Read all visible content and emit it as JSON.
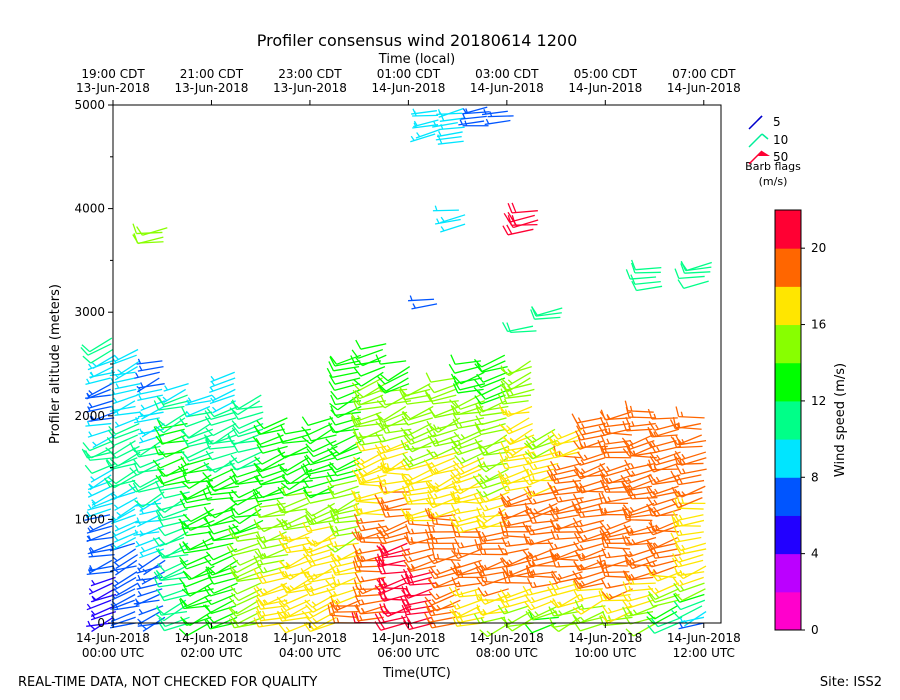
{
  "chart_data": {
    "type": "wind-barbs",
    "title": "Profiler consensus wind 20180614 1200",
    "top_axis_label": "Time (local)",
    "top_ticks": [
      {
        "line1": "19:00 CDT",
        "line2": "13-Jun-2018",
        "hour_utc": 0
      },
      {
        "line1": "21:00 CDT",
        "line2": "13-Jun-2018",
        "hour_utc": 2
      },
      {
        "line1": "23:00 CDT",
        "line2": "13-Jun-2018",
        "hour_utc": 4
      },
      {
        "line1": "01:00 CDT",
        "line2": "14-Jun-2018",
        "hour_utc": 6
      },
      {
        "line1": "03:00 CDT",
        "line2": "14-Jun-2018",
        "hour_utc": 8
      },
      {
        "line1": "05:00 CDT",
        "line2": "14-Jun-2018",
        "hour_utc": 10
      },
      {
        "line1": "07:00 CDT",
        "line2": "14-Jun-2018",
        "hour_utc": 12
      }
    ],
    "bottom_ticks": [
      {
        "line1": "14-Jun-2018",
        "line2": "00:00 UTC",
        "hour_utc": 0
      },
      {
        "line1": "14-Jun-2018",
        "line2": "02:00 UTC",
        "hour_utc": 2
      },
      {
        "line1": "14-Jun-2018",
        "line2": "04:00 UTC",
        "hour_utc": 4
      },
      {
        "line1": "14-Jun-2018",
        "line2": "06:00 UTC",
        "hour_utc": 6
      },
      {
        "line1": "14-Jun-2018",
        "line2": "08:00 UTC",
        "hour_utc": 8
      },
      {
        "line1": "14-Jun-2018",
        "line2": "10:00 UTC",
        "hour_utc": 10
      },
      {
        "line1": "14-Jun-2018",
        "line2": "12:00 UTC",
        "hour_utc": 12
      }
    ],
    "xlabel": "Time(UTC)",
    "ylabel": "Profiler altitude (meters)",
    "xlim_hours": [
      0,
      12.35
    ],
    "ylim": [
      0,
      5000
    ],
    "yticks": [
      0,
      1000,
      2000,
      3000,
      4000,
      5000
    ],
    "colorbar": {
      "label": "Wind speed (m/s)",
      "ticks": [
        0,
        4,
        8,
        12,
        16,
        20
      ],
      "range": [
        0,
        22
      ],
      "colors": [
        "#ff00cc",
        "#bb00ff",
        "#2200ff",
        "#0055ff",
        "#00e5ff",
        "#00ff88",
        "#00ff00",
        "#88ff00",
        "#ffe600",
        "#ff6600",
        "#ff0033"
      ]
    },
    "barb_legend": {
      "title_line1": "Barb flags",
      "title_line2": "(m/s)",
      "items": [
        {
          "label": "5",
          "color": "#0000cc"
        },
        {
          "label": "10",
          "color": "#00ee99"
        },
        {
          "label": "50",
          "color": "#ff0033"
        }
      ]
    },
    "profile_times_hours": [
      0.0,
      0.5,
      1.0,
      1.5,
      2.0,
      2.5,
      3.0,
      3.5,
      4.0,
      4.5,
      5.0,
      5.5,
      6.0,
      6.5,
      7.0,
      7.5,
      8.0,
      8.5,
      9.0,
      9.5,
      10.0,
      10.5,
      11.0,
      11.5,
      12.0
    ],
    "profile_tops_m": [
      2750,
      2650,
      2550,
      2350,
      2250,
      2450,
      2200,
      2000,
      1900,
      2000,
      2600,
      2700,
      2550,
      2350,
      2400,
      2550,
      2600,
      2550,
      1900,
      1900,
      2000,
      2050,
      2050,
      2000,
      2000
    ],
    "level_step_m": 55,
    "speed_profiles": [
      {
        "t": 0.0,
        "points": [
          [
            0,
            5
          ],
          [
            900,
            7
          ],
          [
            1700,
            11
          ],
          [
            2100,
            6
          ],
          [
            2750,
            11
          ]
        ]
      },
      {
        "t": 0.5,
        "points": [
          [
            0,
            6
          ],
          [
            800,
            8
          ],
          [
            1600,
            11
          ],
          [
            2650,
            8
          ]
        ]
      },
      {
        "t": 1.0,
        "points": [
          [
            0,
            6
          ],
          [
            700,
            8
          ],
          [
            1500,
            11
          ],
          [
            2550,
            7
          ]
        ]
      },
      {
        "t": 1.5,
        "points": [
          [
            0,
            10
          ],
          [
            900,
            11
          ],
          [
            1800,
            13
          ],
          [
            2350,
            9
          ]
        ]
      },
      {
        "t": 2.0,
        "points": [
          [
            0,
            13
          ],
          [
            800,
            13
          ],
          [
            1400,
            13
          ],
          [
            2250,
            9
          ]
        ]
      },
      {
        "t": 2.5,
        "points": [
          [
            0,
            13
          ],
          [
            700,
            13
          ],
          [
            1200,
            13
          ],
          [
            2450,
            9
          ]
        ]
      },
      {
        "t": 3.0,
        "points": [
          [
            0,
            14
          ],
          [
            600,
            15
          ],
          [
            1200,
            13
          ],
          [
            2200,
            10
          ]
        ]
      },
      {
        "t": 3.5,
        "points": [
          [
            0,
            16
          ],
          [
            500,
            16
          ],
          [
            1200,
            14
          ],
          [
            2000,
            12
          ]
        ]
      },
      {
        "t": 4.0,
        "points": [
          [
            0,
            17
          ],
          [
            700,
            17
          ],
          [
            1500,
            13
          ],
          [
            1900,
            13
          ]
        ]
      },
      {
        "t": 4.5,
        "points": [
          [
            0,
            17
          ],
          [
            800,
            17
          ],
          [
            1400,
            13
          ],
          [
            2000,
            12
          ]
        ]
      },
      {
        "t": 5.0,
        "points": [
          [
            0,
            19
          ],
          [
            500,
            17
          ],
          [
            1400,
            14
          ],
          [
            2600,
            13
          ]
        ]
      },
      {
        "t": 5.5,
        "points": [
          [
            0,
            20
          ],
          [
            600,
            19
          ],
          [
            1400,
            17
          ],
          [
            2700,
            13
          ]
        ]
      },
      {
        "t": 6.0,
        "points": [
          [
            0,
            21
          ],
          [
            800,
            20
          ],
          [
            1500,
            17
          ],
          [
            2550,
            13
          ]
        ]
      },
      {
        "t": 6.5,
        "points": [
          [
            0,
            21
          ],
          [
            500,
            20
          ],
          [
            1200,
            17
          ],
          [
            2350,
            14
          ]
        ]
      },
      {
        "t": 7.0,
        "points": [
          [
            0,
            18
          ],
          [
            600,
            20
          ],
          [
            1300,
            17
          ],
          [
            2400,
            14
          ]
        ]
      },
      {
        "t": 7.5,
        "points": [
          [
            0,
            16
          ],
          [
            500,
            19
          ],
          [
            1300,
            17
          ],
          [
            2550,
            13
          ]
        ]
      },
      {
        "t": 8.0,
        "points": [
          [
            0,
            15
          ],
          [
            500,
            20
          ],
          [
            1300,
            16
          ],
          [
            2600,
            13
          ]
        ]
      },
      {
        "t": 8.5,
        "points": [
          [
            0,
            14
          ],
          [
            500,
            20
          ],
          [
            1300,
            18
          ],
          [
            2550,
            15
          ]
        ]
      },
      {
        "t": 9.0,
        "points": [
          [
            0,
            13
          ],
          [
            500,
            20
          ],
          [
            1300,
            18
          ],
          [
            1900,
            15
          ]
        ]
      },
      {
        "t": 9.5,
        "points": [
          [
            0,
            14
          ],
          [
            500,
            19
          ],
          [
            1300,
            19
          ],
          [
            1900,
            17
          ]
        ]
      },
      {
        "t": 10.0,
        "points": [
          [
            0,
            14
          ],
          [
            500,
            20
          ],
          [
            1200,
            19
          ],
          [
            2000,
            18
          ]
        ]
      },
      {
        "t": 10.5,
        "points": [
          [
            0,
            15
          ],
          [
            500,
            20
          ],
          [
            1200,
            19
          ],
          [
            2050,
            19
          ]
        ]
      },
      {
        "t": 11.0,
        "points": [
          [
            0,
            14
          ],
          [
            500,
            19
          ],
          [
            1200,
            19
          ],
          [
            2050,
            18
          ]
        ]
      },
      {
        "t": 11.5,
        "points": [
          [
            0,
            11
          ],
          [
            500,
            18
          ],
          [
            1200,
            19
          ],
          [
            2000,
            18
          ]
        ]
      },
      {
        "t": 12.0,
        "points": [
          [
            0,
            7
          ],
          [
            400,
            16
          ],
          [
            1200,
            18
          ],
          [
            2000,
            18
          ]
        ]
      }
    ],
    "upper_groups": [
      {
        "t": 1.0,
        "alt_min": 3680,
        "alt_max": 3820,
        "speed": 14
      },
      {
        "t": 6.5,
        "alt_min": 4720,
        "alt_max": 4980,
        "speed": 9
      },
      {
        "t": 7.0,
        "alt_min": 4650,
        "alt_max": 4980,
        "speed": 9
      },
      {
        "t": 7.5,
        "alt_min": 4800,
        "alt_max": 4980,
        "speed": 7
      },
      {
        "t": 8.0,
        "alt_min": 4850,
        "alt_max": 4980,
        "speed": 6
      },
      {
        "t": 6.5,
        "alt_min": 3080,
        "alt_max": 3160,
        "speed": 6
      },
      {
        "t": 7.0,
        "alt_min": 3850,
        "alt_max": 3990,
        "speed": 9
      },
      {
        "t": 8.5,
        "alt_min": 3800,
        "alt_max": 3980,
        "speed": 22
      },
      {
        "t": 8.5,
        "alt_min": 2820,
        "alt_max": 2900,
        "speed": 10
      },
      {
        "t": 9.0,
        "alt_min": 2950,
        "alt_max": 3050,
        "speed": 10
      },
      {
        "t": 11.0,
        "alt_min": 3250,
        "alt_max": 3450,
        "speed": 11
      },
      {
        "t": 12.0,
        "alt_min": 3300,
        "alt_max": 3500,
        "speed": 11
      }
    ]
  },
  "footer": {
    "left": "REAL-TIME DATA, NOT CHECKED FOR QUALITY",
    "right": "Site: ISS2"
  }
}
